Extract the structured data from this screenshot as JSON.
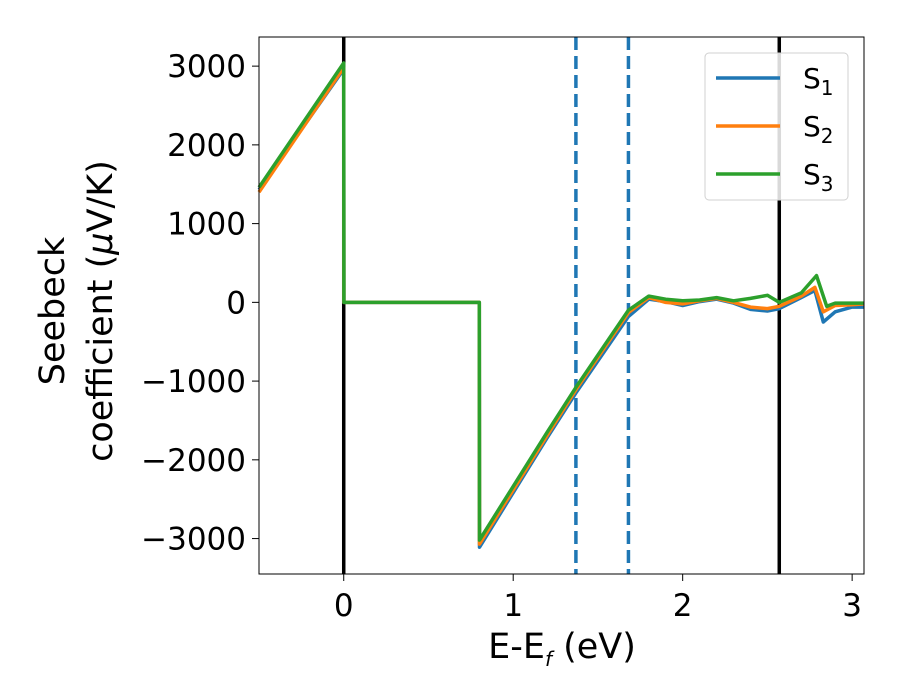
{
  "chart_data": {
    "type": "line",
    "xlabel": "E-E",
    "xlabel_sub": "f",
    "xlabel_unit": " (eV)",
    "ylabel_line1": "Seebeck",
    "ylabel_line2_pre": "coefficient  (",
    "ylabel_mu": "μ",
    "ylabel_line2_post": "V/K)",
    "xlim": [
      -0.5,
      3.07
    ],
    "ylim": [
      -3450,
      3370
    ],
    "xticks": [
      0,
      1,
      2,
      3
    ],
    "xtick_labels": [
      "0",
      "1",
      "2",
      "3"
    ],
    "yticks": [
      3000,
      2000,
      1000,
      0,
      -1000,
      -2000,
      -3000
    ],
    "ytick_labels": [
      "3000",
      "2000",
      "1000",
      "0",
      "−1000",
      "−2000",
      "−3000"
    ],
    "vlines": [
      {
        "x": 0.0,
        "style": "solid",
        "color": "#000000"
      },
      {
        "x": 2.57,
        "style": "solid",
        "color": "#000000"
      },
      {
        "x": 1.37,
        "style": "dashed",
        "color": "#1f77b4"
      },
      {
        "x": 1.68,
        "style": "dashed",
        "color": "#1f77b4"
      }
    ],
    "legend_position": "top-right",
    "series": [
      {
        "name_base": "S",
        "name_sub": "1",
        "color": "#1f77b4",
        "points": [
          [
            -0.5,
            1430
          ],
          [
            0.0,
            2960
          ],
          [
            0.001,
            0
          ],
          [
            0.8,
            0
          ],
          [
            0.801,
            -3110
          ],
          [
            1.2,
            -1720
          ],
          [
            1.37,
            -1150
          ],
          [
            1.68,
            -180
          ],
          [
            1.8,
            40
          ],
          [
            1.9,
            10
          ],
          [
            2.0,
            -40
          ],
          [
            2.1,
            10
          ],
          [
            2.2,
            40
          ],
          [
            2.3,
            -10
          ],
          [
            2.4,
            -90
          ],
          [
            2.5,
            -110
          ],
          [
            2.57,
            -80
          ],
          [
            2.7,
            60
          ],
          [
            2.78,
            150
          ],
          [
            2.83,
            -250
          ],
          [
            2.9,
            -120
          ],
          [
            3.0,
            -60
          ],
          [
            3.07,
            -60
          ]
        ]
      },
      {
        "name_base": "S",
        "name_sub": "2",
        "color": "#ff7f0e",
        "points": [
          [
            -0.5,
            1400
          ],
          [
            0.0,
            2980
          ],
          [
            0.001,
            0
          ],
          [
            0.8,
            0
          ],
          [
            0.801,
            -3070
          ],
          [
            1.2,
            -1690
          ],
          [
            1.37,
            -1110
          ],
          [
            1.68,
            -130
          ],
          [
            1.8,
            60
          ],
          [
            1.9,
            0
          ],
          [
            2.0,
            -20
          ],
          [
            2.1,
            20
          ],
          [
            2.2,
            50
          ],
          [
            2.3,
            0
          ],
          [
            2.4,
            -60
          ],
          [
            2.5,
            -80
          ],
          [
            2.57,
            -50
          ],
          [
            2.7,
            80
          ],
          [
            2.78,
            190
          ],
          [
            2.83,
            -120
          ],
          [
            2.9,
            -40
          ],
          [
            3.0,
            -30
          ],
          [
            3.07,
            -20
          ]
        ]
      },
      {
        "name_base": "S",
        "name_sub": "3",
        "color": "#2ca02c",
        "points": [
          [
            -0.5,
            1460
          ],
          [
            0.0,
            3040
          ],
          [
            0.001,
            0
          ],
          [
            0.8,
            0
          ],
          [
            0.801,
            -3020
          ],
          [
            1.2,
            -1650
          ],
          [
            1.37,
            -1080
          ],
          [
            1.68,
            -100
          ],
          [
            1.8,
            80
          ],
          [
            1.9,
            40
          ],
          [
            2.0,
            20
          ],
          [
            2.1,
            30
          ],
          [
            2.2,
            60
          ],
          [
            2.3,
            20
          ],
          [
            2.4,
            50
          ],
          [
            2.5,
            90
          ],
          [
            2.57,
            0
          ],
          [
            2.7,
            120
          ],
          [
            2.79,
            340
          ],
          [
            2.85,
            -50
          ],
          [
            2.9,
            -10
          ],
          [
            3.0,
            -10
          ],
          [
            3.07,
            -10
          ]
        ]
      }
    ]
  }
}
